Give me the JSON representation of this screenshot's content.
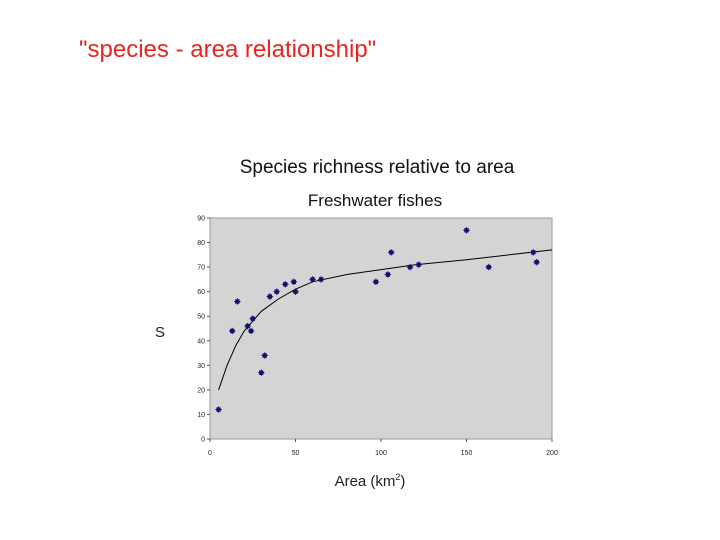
{
  "slide": {
    "title": "\"species - area relationship\""
  },
  "chart_data": {
    "type": "scatter",
    "title": "Species richness relative to area",
    "subtitle": "Freshwater fishes",
    "xlabel": "Area (km",
    "xlabel_superscript": "2",
    "xlabel_suffix": ")",
    "ylabel": "S",
    "xlim": [
      0,
      200
    ],
    "ylim": [
      0,
      90
    ],
    "x_ticks": [
      0,
      50,
      100,
      150,
      200
    ],
    "y_ticks": [
      0,
      10,
      20,
      30,
      40,
      50,
      60,
      70,
      80,
      90
    ],
    "grid": false,
    "plot_background": "#d4d4d4",
    "marker_color": "#13136b",
    "curve_color": "#000000",
    "series": [
      {
        "points": [
          [
            5,
            12
          ],
          [
            13,
            44
          ],
          [
            16,
            56
          ],
          [
            22,
            46
          ],
          [
            24,
            44
          ],
          [
            25,
            49
          ],
          [
            30,
            27
          ],
          [
            32,
            34
          ],
          [
            35,
            58
          ],
          [
            39,
            60
          ],
          [
            44,
            63
          ],
          [
            49,
            64
          ],
          [
            50,
            60
          ],
          [
            60,
            65
          ],
          [
            65,
            65
          ],
          [
            97,
            64
          ],
          [
            104,
            67
          ],
          [
            106,
            76
          ],
          [
            117,
            70
          ],
          [
            122,
            71
          ],
          [
            150,
            85
          ],
          [
            163,
            70
          ],
          [
            189,
            76
          ],
          [
            191,
            72
          ]
        ]
      }
    ],
    "trend_curve": [
      [
        5,
        20
      ],
      [
        10,
        30
      ],
      [
        15,
        38
      ],
      [
        20,
        44
      ],
      [
        30,
        52
      ],
      [
        40,
        57
      ],
      [
        50,
        61
      ],
      [
        60,
        64
      ],
      [
        80,
        67
      ],
      [
        100,
        69
      ],
      [
        120,
        71
      ],
      [
        150,
        73
      ],
      [
        175,
        75
      ],
      [
        200,
        77
      ]
    ]
  }
}
